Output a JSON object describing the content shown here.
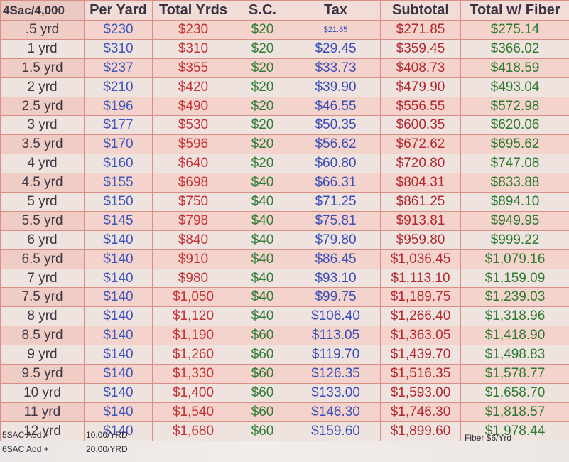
{
  "table": {
    "headers": {
      "label": "4Sac/4,000",
      "per_yard": "Per Yard",
      "total_yrds": "Total Yrds",
      "sc": "S.C.",
      "tax": "Tax",
      "subtotal": "Subtotal",
      "total_fiber": "Total w/ Fiber"
    },
    "rows": [
      {
        "label": ".5 yrd",
        "per_yard": "$230",
        "total_yrds": "$230",
        "sc": "$20",
        "tax": "$21.85",
        "subtotal": "$271.85",
        "total_fiber": "$275.14"
      },
      {
        "label": "1 yrd",
        "per_yard": "$310",
        "total_yrds": "$310",
        "sc": "$20",
        "tax": "$29.45",
        "subtotal": "$359.45",
        "total_fiber": "$366.02"
      },
      {
        "label": "1.5 yrd",
        "per_yard": "$237",
        "total_yrds": "$355",
        "sc": "$20",
        "tax": "$33.73",
        "subtotal": "$408.73",
        "total_fiber": "$418.59"
      },
      {
        "label": "2 yrd",
        "per_yard": "$210",
        "total_yrds": "$420",
        "sc": "$20",
        "tax": "$39.90",
        "subtotal": "$479.90",
        "total_fiber": "$493.04"
      },
      {
        "label": "2.5 yrd",
        "per_yard": "$196",
        "total_yrds": "$490",
        "sc": "$20",
        "tax": "$46.55",
        "subtotal": "$556.55",
        "total_fiber": "$572.98"
      },
      {
        "label": "3 yrd",
        "per_yard": "$177",
        "total_yrds": "$530",
        "sc": "$20",
        "tax": "$50.35",
        "subtotal": "$600.35",
        "total_fiber": "$620.06"
      },
      {
        "label": "3.5 yrd",
        "per_yard": "$170",
        "total_yrds": "$596",
        "sc": "$20",
        "tax": "$56.62",
        "subtotal": "$672.62",
        "total_fiber": "$695.62"
      },
      {
        "label": "4 yrd",
        "per_yard": "$160",
        "total_yrds": "$640",
        "sc": "$20",
        "tax": "$60.80",
        "subtotal": "$720.80",
        "total_fiber": "$747.08"
      },
      {
        "label": "4.5 yrd",
        "per_yard": "$155",
        "total_yrds": "$698",
        "sc": "$40",
        "tax": "$66.31",
        "subtotal": "$804.31",
        "total_fiber": "$833.88"
      },
      {
        "label": "5 yrd",
        "per_yard": "$150",
        "total_yrds": "$750",
        "sc": "$40",
        "tax": "$71.25",
        "subtotal": "$861.25",
        "total_fiber": "$894.10"
      },
      {
        "label": "5.5 yrd",
        "per_yard": "$145",
        "total_yrds": "$798",
        "sc": "$40",
        "tax": "$75.81",
        "subtotal": "$913.81",
        "total_fiber": "$949.95"
      },
      {
        "label": "6 yrd",
        "per_yard": "$140",
        "total_yrds": "$840",
        "sc": "$40",
        "tax": "$79.80",
        "subtotal": "$959.80",
        "total_fiber": "$999.22"
      },
      {
        "label": "6.5 yrd",
        "per_yard": "$140",
        "total_yrds": "$910",
        "sc": "$40",
        "tax": "$86.45",
        "subtotal": "$1,036.45",
        "total_fiber": "$1,079.16"
      },
      {
        "label": "7 yrd",
        "per_yard": "$140",
        "total_yrds": "$980",
        "sc": "$40",
        "tax": "$93.10",
        "subtotal": "$1,113.10",
        "total_fiber": "$1,159.09"
      },
      {
        "label": "7.5 yrd",
        "per_yard": "$140",
        "total_yrds": "$1,050",
        "sc": "$40",
        "tax": "$99.75",
        "subtotal": "$1,189.75",
        "total_fiber": "$1,239.03"
      },
      {
        "label": "8 yrd",
        "per_yard": "$140",
        "total_yrds": "$1,120",
        "sc": "$40",
        "tax": "$106.40",
        "subtotal": "$1,266.40",
        "total_fiber": "$1,318.96"
      },
      {
        "label": "8.5 yrd",
        "per_yard": "$140",
        "total_yrds": "$1,190",
        "sc": "$60",
        "tax": "$113.05",
        "subtotal": "$1,363.05",
        "total_fiber": "$1,418.90"
      },
      {
        "label": "9 yrd",
        "per_yard": "$140",
        "total_yrds": "$1,260",
        "sc": "$60",
        "tax": "$119.70",
        "subtotal": "$1,439.70",
        "total_fiber": "$1,498.83"
      },
      {
        "label": "9.5 yrd",
        "per_yard": "$140",
        "total_yrds": "$1,330",
        "sc": "$60",
        "tax": "$126.35",
        "subtotal": "$1,516.35",
        "total_fiber": "$1,578.77"
      },
      {
        "label": "10 yrd",
        "per_yard": "$140",
        "total_yrds": "$1,400",
        "sc": "$60",
        "tax": "$133.00",
        "subtotal": "$1,593.00",
        "total_fiber": "$1,658.70"
      },
      {
        "label": "11 yrd",
        "per_yard": "$140",
        "total_yrds": "$1,540",
        "sc": "$60",
        "tax": "$146.30",
        "subtotal": "$1,746.30",
        "total_fiber": "$1,818.57"
      },
      {
        "label": "12 yrd",
        "per_yard": "$140",
        "total_yrds": "$1,680",
        "sc": "$60",
        "tax": "$159.60",
        "subtotal": "$1,899.60",
        "total_fiber": "$1,978.44"
      }
    ]
  },
  "footnotes": {
    "add_5sac_label": "5SAC Add +",
    "add_5sac_value": "10.00/YRD",
    "add_6sac_label": "6SAC Add +",
    "add_6sac_value": "20.00/YRD",
    "fiber_note": "Fiber $6/Yrd"
  },
  "colors": {
    "per_yard": "#3f55b8",
    "total_yrds": "#c23436",
    "sc": "#2f7a36",
    "tax": "#3a4fb6",
    "subtotal": "#b02a30",
    "total_fiber": "#2c7a2f",
    "row_shade": "#f3d3cb",
    "grid_line": "#d98f85"
  }
}
